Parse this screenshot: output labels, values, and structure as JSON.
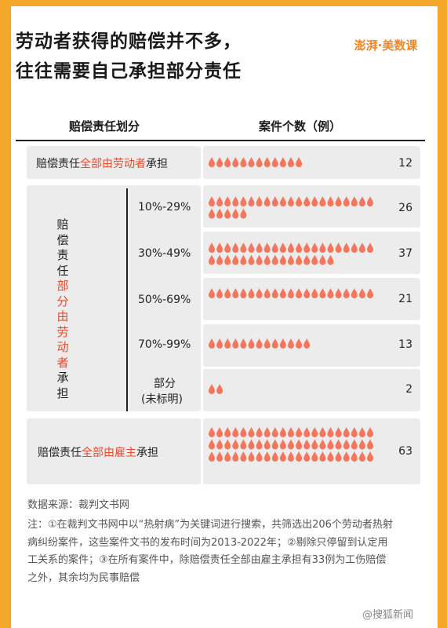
{
  "title_line1": "劳动者获得的赔偿并不多，",
  "title_line2": "往往需要自己承担部分责任",
  "brand": "澎湃·美数课",
  "header_category": "赔偿责任划分",
  "header_count": "案件个数（例）",
  "rows": {
    "all_worker": {
      "pre": "赔偿责任",
      "hl": "全部由劳动者",
      "post": "承担"
    },
    "partial": {
      "pre": "赔偿责任",
      "hl": "部分由劳动者",
      "post": "承担"
    },
    "all_employer": {
      "pre": "赔偿责任",
      "hl": "全部由雇主",
      "post": "承担"
    }
  },
  "sub_labels": [
    "10%-29%",
    "30%-49%",
    "50%-69%",
    "70%-99%",
    "部分",
    "(未标明)"
  ],
  "chart_data": {
    "type": "bar",
    "categories": [
      "赔偿责任全部由劳动者承担",
      "10%-29%",
      "30%-49%",
      "50%-69%",
      "70%-99%",
      "部分(未标明)",
      "赔偿责任全部由雇主承担"
    ],
    "values": [
      12,
      26,
      37,
      21,
      13,
      2,
      63
    ],
    "ylabel": "案件个数（例）",
    "xlabel": "赔偿责任划分",
    "color": "#f4765c"
  },
  "source": "数据来源：裁判文书网",
  "note": "注：①在裁判文书网中以“热射病”为关键词进行搜索，共筛选出206个劳动者热射病纠纷案件，这些案件文书的发布时间为2013-2022年；②剔除只停留到认定用工关系的案件；③在所有案件中，除赔偿责任全部由雇主承担有33例为工伤赔偿之外，其余均为民事赔偿",
  "watermark": "@搜狐新闻"
}
